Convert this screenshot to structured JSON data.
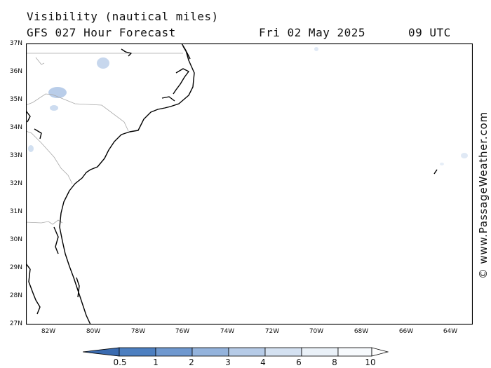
{
  "header": {
    "title": "Visibility (nautical miles)",
    "model": "GFS 027 Hour Forecast",
    "date": "Fri 02 May 2025",
    "time": "09 UTC"
  },
  "credit": "© www.PassageWeather.com",
  "map": {
    "lat_labels": [
      "37N",
      "36N",
      "35N",
      "34N",
      "33N",
      "32N",
      "31N",
      "30N",
      "29N",
      "28N",
      "27N"
    ],
    "lon_labels": [
      "82W",
      "80W",
      "78W",
      "76W",
      "74W",
      "72W",
      "70W",
      "68W",
      "66W",
      "64W"
    ],
    "lat_range": [
      27,
      37
    ],
    "lon_range": [
      -83,
      -63
    ],
    "colors": {
      "coast": "#000000",
      "state_border": "#a0a0a0",
      "frame": "#000000",
      "background": "#ffffff"
    }
  },
  "legend": {
    "labels": [
      "0.5",
      "1",
      "2",
      "3",
      "4",
      "6",
      "8",
      "10"
    ],
    "colors": [
      "#3a6bb0",
      "#4d7fc0",
      "#6f98cf",
      "#94b3dc",
      "#b6cbe7",
      "#d4e1f1",
      "#eaf1f8",
      "#ffffff"
    ]
  }
}
